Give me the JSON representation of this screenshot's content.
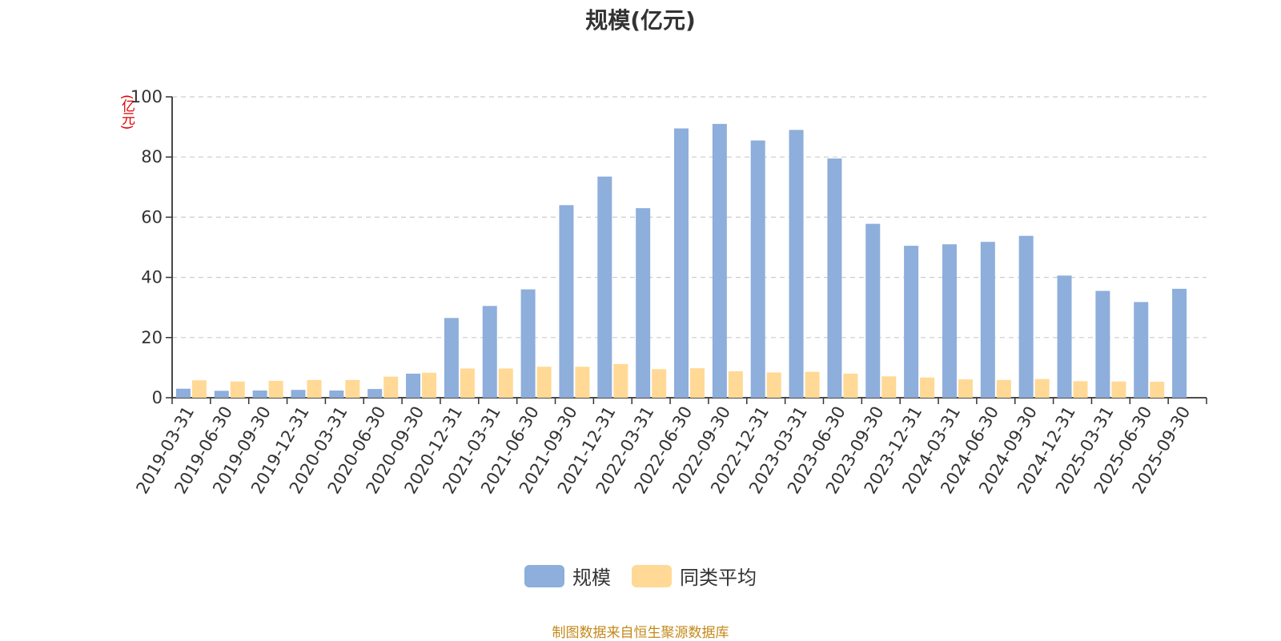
{
  "title": "规模(亿元)",
  "unit_label": "(亿元)",
  "source": "制图数据来自恒生聚源数据库",
  "colors": {
    "scale": "#8eaedb",
    "average": "#ffd995",
    "axis": "#333333",
    "grid": "#cccccc"
  },
  "chart_data": {
    "type": "bar",
    "title": "规模(亿元)",
    "ylabel": "(亿元)",
    "ylim": [
      0,
      100
    ],
    "yticks": [
      0,
      20,
      40,
      60,
      80,
      100
    ],
    "grid": true,
    "legend_position": "bottom-center",
    "categories": [
      "2019-03-31",
      "2019-06-30",
      "2019-09-30",
      "2019-12-31",
      "2020-03-31",
      "2020-06-30",
      "2020-09-30",
      "2020-12-31",
      "2021-03-31",
      "2021-06-30",
      "2021-09-30",
      "2021-12-31",
      "2022-03-31",
      "2022-06-30",
      "2022-09-30",
      "2022-12-31",
      "2023-03-31",
      "2023-06-30",
      "2023-09-30",
      "2023-12-31",
      "2024-03-31",
      "2024-06-30",
      "2024-09-30",
      "2024-12-31",
      "2025-03-31",
      "2025-06-30",
      "2025-09-30"
    ],
    "series": [
      {
        "name": "规模",
        "values": [
          3.0,
          2.3,
          2.4,
          2.6,
          2.4,
          2.9,
          8.0,
          26.5,
          30.5,
          36.0,
          64.0,
          73.5,
          63.0,
          89.5,
          91.0,
          85.5,
          89.0,
          79.5,
          57.8,
          50.5,
          51.0,
          51.8,
          53.8,
          40.6,
          35.5,
          31.8,
          36.2
        ]
      },
      {
        "name": "同类平均",
        "values": [
          5.8,
          5.4,
          5.6,
          5.9,
          5.9,
          7.0,
          8.3,
          9.7,
          9.7,
          10.3,
          10.3,
          11.2,
          9.5,
          9.8,
          8.8,
          8.4,
          8.6,
          8.0,
          7.1,
          6.7,
          6.1,
          5.9,
          6.2,
          5.5,
          5.4,
          5.3,
          0
        ]
      }
    ]
  }
}
